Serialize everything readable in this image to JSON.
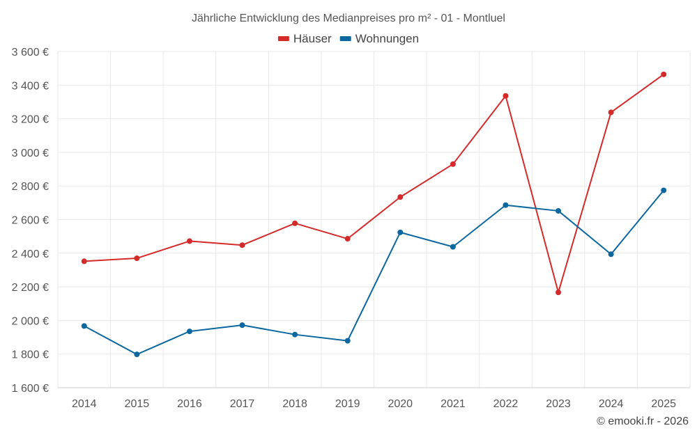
{
  "colors": {
    "houses": "#d42a2a",
    "apartments": "#0b67a0"
  },
  "chart_data": {
    "type": "line",
    "title": "Jährliche Entwicklung des Medianpreises pro m² - 01 - Montluel",
    "xlabel": "",
    "ylabel": "",
    "categories": [
      "2014",
      "2015",
      "2016",
      "2017",
      "2018",
      "2019",
      "2020",
      "2021",
      "2022",
      "2023",
      "2024",
      "2025"
    ],
    "ylim": [
      1600,
      3600
    ],
    "yticks": [
      1600,
      1800,
      2000,
      2200,
      2400,
      2600,
      2800,
      3000,
      3200,
      3400,
      3600
    ],
    "ytick_labels": [
      "1 600 €",
      "1 800 €",
      "2 000 €",
      "2 200 €",
      "2 400 €",
      "2 600 €",
      "2 800 €",
      "3 000 €",
      "3 200 €",
      "3 400 €",
      "3 600 €"
    ],
    "legend_position": "top-center",
    "grid": true,
    "series": [
      {
        "name": "Häuser",
        "color": "#d42a2a",
        "values": [
          2352,
          2370,
          2472,
          2448,
          2578,
          2486,
          2734,
          2930,
          3336,
          2167,
          3238,
          3464
        ]
      },
      {
        "name": "Wohnungen",
        "color": "#0b67a0",
        "values": [
          1967,
          1798,
          1935,
          1972,
          1916,
          1879,
          2524,
          2438,
          2686,
          2652,
          2394,
          2774
        ]
      }
    ]
  },
  "credit": "© emooki.fr - 2026"
}
